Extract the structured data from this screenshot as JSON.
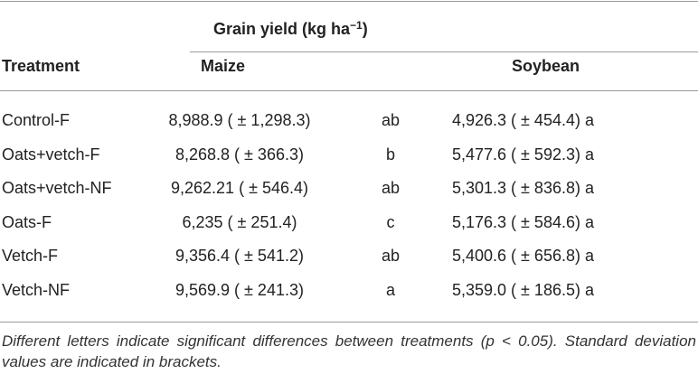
{
  "table": {
    "title": "Grain yield (kg ha",
    "title_sup": "−1",
    "title_end": ")",
    "columns": [
      "Treatment",
      "Maize",
      "Soybean"
    ],
    "rows": [
      [
        "Control-F",
        "8,988.9 ( ± 1,298.3)",
        "ab",
        "4,926.3 ( ± 454.4) a"
      ],
      [
        "Oats+vetch-F",
        "8,268.8 ( ± 366.3)",
        "b",
        "5,477.6 ( ± 592.3) a"
      ],
      [
        "Oats+vetch-NF",
        "9,262.21 ( ± 546.4)",
        "ab",
        "5,301.3 ( ± 836.8) a"
      ],
      [
        "Oats-F",
        "6,235 ( ± 251.4)",
        "c",
        "5,176.3 ( ± 584.6) a"
      ],
      [
        "Vetch-F",
        "9,356.4 ( ± 541.2)",
        "ab",
        "5,400.6 ( ± 656.8) a"
      ],
      [
        "Vetch-NF",
        "9,569.9 ( ± 241.3)",
        "a",
        "5,359.0 ( ± 186.5) a"
      ]
    ],
    "footnote": "Different letters indicate significant differences between treatments (p < 0.05). Standard deviation values are indicated in brackets."
  }
}
